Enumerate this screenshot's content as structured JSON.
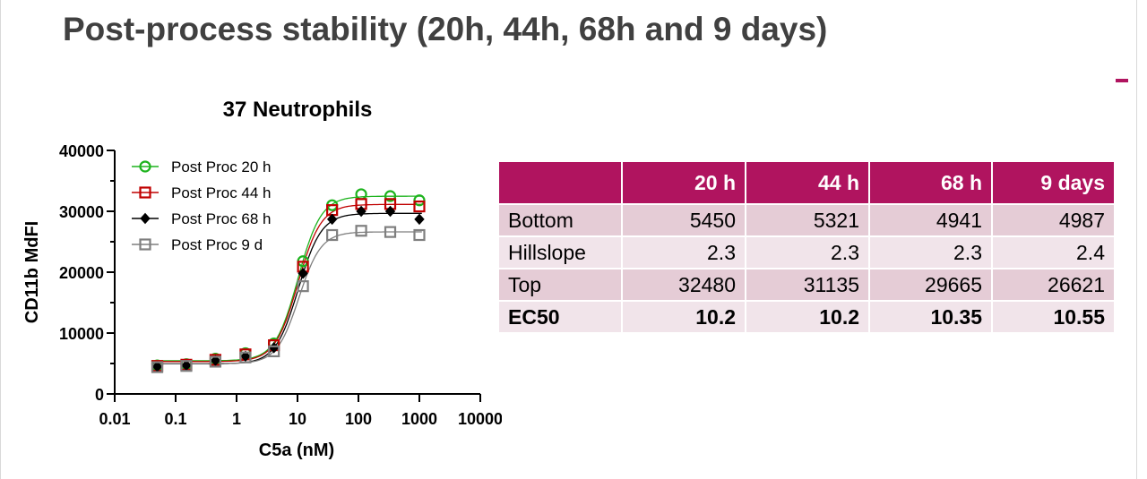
{
  "slide": {
    "title": "Post-process stability (20h, 44h, 68h and 9 days)",
    "accent_color": "#b0145f"
  },
  "chart_data": {
    "type": "scatter",
    "title": "37 Neutrophils",
    "xlabel": "C5a (nM)",
    "ylabel": "CD11b MdFI",
    "xscale": "log",
    "xlim": [
      0.01,
      10000
    ],
    "ylim": [
      0,
      40000
    ],
    "x_ticks": [
      0.01,
      0.1,
      1,
      10,
      100,
      1000,
      10000
    ],
    "x_tick_labels": [
      "0.01",
      "0.1",
      "1",
      "10",
      "100",
      "1000",
      "10000"
    ],
    "y_ticks": [
      0,
      10000,
      20000,
      30000,
      40000
    ],
    "y_tick_labels": [
      "0",
      "10000",
      "20000",
      "30000",
      "40000"
    ],
    "grid": false,
    "legend": "top-left",
    "x": [
      0.05,
      0.15,
      0.45,
      1.4,
      4.1,
      12.3,
      37,
      111,
      333,
      1000
    ],
    "series": [
      {
        "name": "Post Proc 20 h",
        "marker": "circle-open",
        "color": "#1db31d",
        "values": [
          4700,
          4900,
          5800,
          6700,
          8300,
          21800,
          31000,
          32800,
          32500,
          31800
        ],
        "fit": {
          "bottom": 5450,
          "top": 32480,
          "hillslope": 2.3,
          "ec50": 10.2
        }
      },
      {
        "name": "Post Proc 44 h",
        "marker": "square-open",
        "color": "#c00000",
        "values": [
          4600,
          4800,
          5600,
          6500,
          8000,
          20900,
          30200,
          31200,
          31200,
          30800
        ],
        "fit": {
          "bottom": 5321,
          "top": 31135,
          "hillslope": 2.3,
          "ec50": 10.2
        }
      },
      {
        "name": "Post Proc 68 h",
        "marker": "diamond-filled",
        "color": "#000000",
        "values": [
          4500,
          4700,
          5500,
          6200,
          7600,
          19800,
          28700,
          30000,
          30000,
          28700
        ],
        "fit": {
          "bottom": 4941,
          "top": 29665,
          "hillslope": 2.3,
          "ec50": 10.35
        }
      },
      {
        "name": "Post Proc 9 d",
        "marker": "square-open",
        "color": "#7f7f7f",
        "values": [
          4400,
          4600,
          5300,
          6000,
          7000,
          17700,
          26100,
          26800,
          26600,
          26100
        ],
        "fit": {
          "bottom": 4987,
          "top": 26621,
          "hillslope": 2.4,
          "ec50": 10.55
        }
      }
    ]
  },
  "table": {
    "columns": [
      "",
      "20 h",
      "44 h",
      "68 h",
      "9 days"
    ],
    "rows": [
      {
        "label": "Bottom",
        "values": [
          "5450",
          "5321",
          "4941",
          "4987"
        ],
        "bold": false
      },
      {
        "label": "Hillslope",
        "values": [
          "2.3",
          "2.3",
          "2.3",
          "2.4"
        ],
        "bold": false
      },
      {
        "label": "Top",
        "values": [
          "32480",
          "31135",
          "29665",
          "26621"
        ],
        "bold": false
      },
      {
        "label": "EC50",
        "values": [
          "10.2",
          "10.2",
          "10.35",
          "10.55"
        ],
        "bold": true
      }
    ]
  }
}
